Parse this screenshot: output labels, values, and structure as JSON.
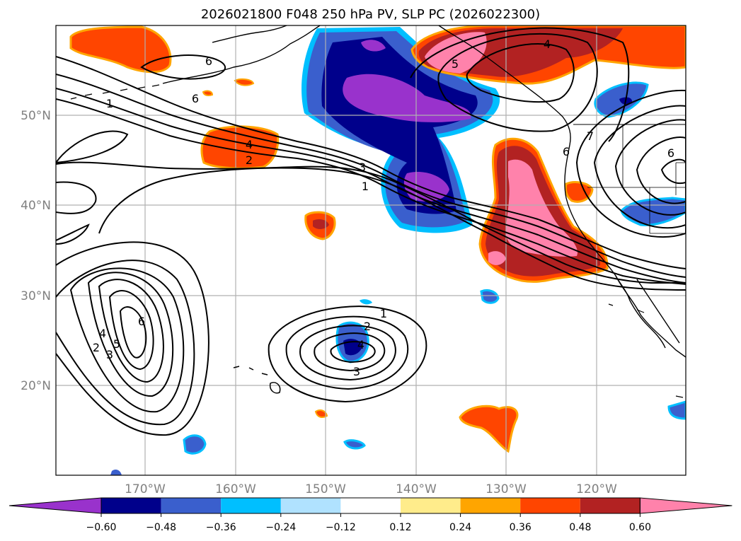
{
  "title": "2026021800 F048 250 hPa PV, SLP PC (2026022300)",
  "map": {
    "lon_labels": [
      "170°W",
      "160°W",
      "150°W",
      "140°W",
      "130°W",
      "120°W"
    ],
    "lat_labels": [
      "50°N",
      "40°N",
      "30°N",
      "20°N"
    ]
  },
  "colorbar": {
    "colors": [
      "#9932CC",
      "#00008B",
      "#3A5FCD",
      "#00BFFF",
      "#B0E2FF",
      "#FFFFFF",
      "#FFEC8B",
      "#FFA500",
      "#FF4500",
      "#B22222",
      "#FF82AB"
    ],
    "tick_labels": [
      "−0.60",
      "−0.48",
      "−0.36",
      "−0.24",
      "−0.12",
      "0.12",
      "0.24",
      "0.36",
      "0.48",
      "0.60"
    ]
  },
  "contour_labels": {
    "north_pacific": [
      "6",
      "6",
      "1",
      "4",
      "2",
      "3",
      "1"
    ],
    "west_low": [
      "6",
      "4",
      "5",
      "2",
      "3"
    ],
    "central_low": [
      "1",
      "2",
      "4",
      "3"
    ],
    "northeast": [
      "4",
      "5",
      "7",
      "6",
      "6"
    ]
  }
}
